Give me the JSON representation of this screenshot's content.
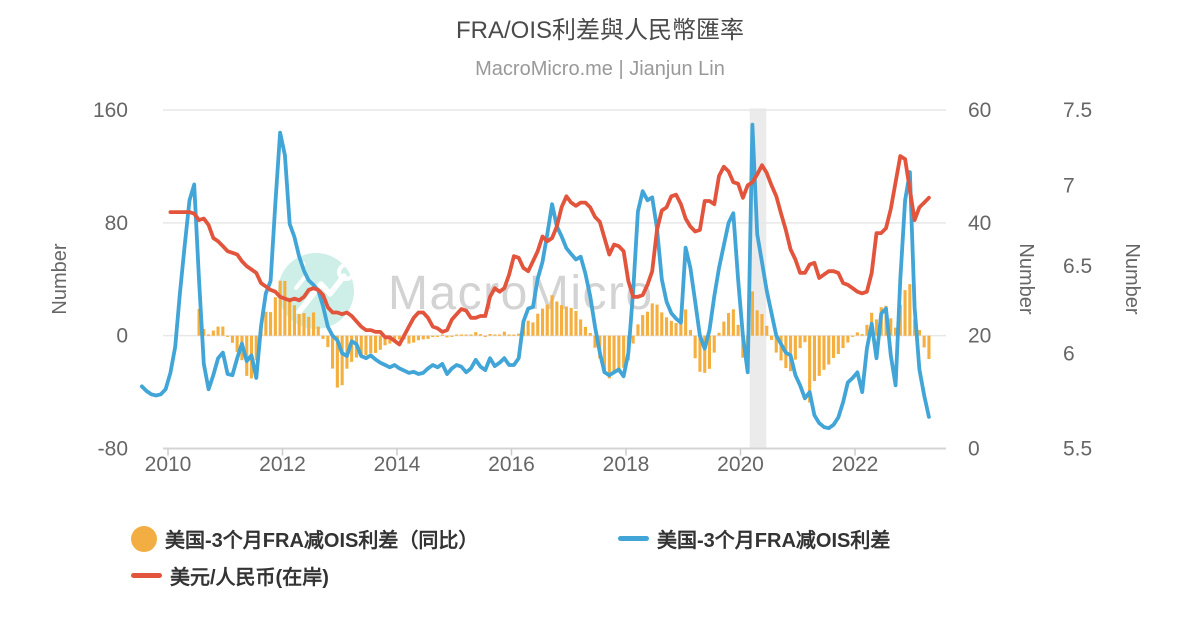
{
  "chart_data": {
    "type": "mixed",
    "title": "FRA/OIS利差與人民幣匯率",
    "subtitle": "MacroMicro.me | Jianjun Lin",
    "watermark": {
      "text": "MacroMicro",
      "circle_color": "#cdefe7",
      "text_color": "#d3d3d3"
    },
    "recession_band": {
      "from": 2020.16,
      "to": 2020.45,
      "color": "#ebebeb"
    },
    "grid": {
      "on": true,
      "color": "#e7e7e7",
      "axis_line_color": "#d4d4d4",
      "tick_color": "#cccccc"
    },
    "x_axis": {
      "ticks": [
        2010,
        2012,
        2014,
        2016,
        2018,
        2020,
        2022
      ],
      "label_color": "#666666"
    },
    "axes": {
      "left": {
        "title": "Number",
        "ticks": [
          "160",
          "80",
          "0",
          "-80"
        ],
        "tick_values": [
          160,
          80,
          0,
          -80
        ],
        "min": -80,
        "max": 160,
        "scale": "linear"
      },
      "right1": {
        "title": "Number",
        "ticks": [
          "60",
          "40",
          "20",
          "0"
        ],
        "tick_values": [
          60,
          40,
          20,
          0
        ],
        "min": 0,
        "max": 60,
        "scale": "linear"
      },
      "right2": {
        "title": "Number",
        "ticks": [
          "7.5",
          "7",
          "6.5",
          "6",
          "5.5"
        ],
        "tick_values": [
          7.5,
          7,
          6.5,
          6,
          5.5
        ],
        "min": 5.5,
        "max": 7.5,
        "scale": "log"
      }
    },
    "series": [
      {
        "name": "美国-3个月FRA减OIS利差（同比）",
        "type": "bar",
        "axis": "left",
        "color": "#F5AF3E",
        "start_year": 2010,
        "start_month": 7,
        "values": [
          19,
          4.8,
          0.9,
          3.6,
          6.4,
          6.5,
          -0.2,
          -5,
          -11.5,
          -17.4,
          -28.5,
          -30.3,
          -17.5,
          6.6,
          17,
          16.7,
          27.3,
          39,
          38.8,
          26.8,
          21.5,
          15.4,
          16,
          13.3,
          16.5,
          6.4,
          -2.3,
          -8.1,
          -23.3,
          -36.8,
          -35.1,
          -23.4,
          -18.5,
          -15.5,
          -15.1,
          -13.8,
          -12.5,
          -12.2,
          -10,
          -6.8,
          -5.6,
          -4.4,
          -2.7,
          -2.6,
          -5.6,
          -4.9,
          -3.2,
          -2.6,
          -2.3,
          -1,
          -0.8,
          0.2,
          -1.2,
          -0.6,
          0.6,
          0.7,
          0.1,
          0.6,
          2.5,
          1.1,
          -0.3,
          1.2,
          0.2,
          0.2,
          2.8,
          0.6,
          0,
          1.5,
          9,
          10.6,
          9.4,
          15.6,
          19.2,
          22,
          28.7,
          24.2,
          21.6,
          20.7,
          19.7,
          17.5,
          11.5,
          6.2,
          1.9,
          -8.5,
          -16.1,
          -24.5,
          -30.3,
          -25.9,
          -23.6,
          -22.7,
          -17.5,
          -5.5,
          8,
          14.6,
          17,
          22.9,
          22,
          16.5,
          13,
          10.5,
          9,
          9.5,
          18.6,
          4,
          -16,
          -25.6,
          -26.3,
          -23.5,
          -12,
          2,
          10,
          16,
          18.7,
          7.7,
          -15.6,
          -18.5,
          31.4,
          18,
          15.3,
          7,
          -3,
          -12,
          -17.5,
          -23,
          -25.2,
          -17,
          -8.8,
          -4.6,
          -47.4,
          -32.1,
          -28.5,
          -24.2,
          -20.4,
          -15.8,
          -13,
          -8.8,
          -4.8,
          -0.5,
          2.3,
          1.1,
          7.7,
          16.2,
          11.5,
          20.1,
          21.2,
          12.3,
          5.7,
          21.8,
          32.3,
          36.5,
          11.5,
          4,
          -8.3,
          -16.5
        ]
      },
      {
        "name": "美国-3个月FRA减OIS利差",
        "type": "line",
        "axis": "right1",
        "color": "#41A5D8",
        "start_year": 2009,
        "start_month": 7,
        "values": [
          11,
          10.2,
          9.6,
          9.4,
          9.6,
          10.5,
          13.4,
          18,
          27.5,
          36,
          44,
          46.8,
          30,
          15,
          10.5,
          13,
          16,
          17,
          13.2,
          13,
          16,
          18.6,
          15.5,
          16.5,
          12.5,
          21.6,
          27.5,
          29.7,
          43.3,
          56,
          52,
          39.8,
          37.5,
          34,
          31.5,
          29.8,
          29,
          28,
          25.2,
          21.6,
          20,
          19.2,
          16.9,
          16.4,
          19,
          18.5,
          16.4,
          16,
          16.5,
          15.8,
          15.2,
          14.8,
          14.4,
          14.8,
          14.2,
          13.8,
          13.4,
          13.6,
          13.2,
          13.4,
          14.2,
          14.8,
          14.4,
          15,
          13.2,
          14.2,
          14.8,
          14.5,
          13.5,
          14.2,
          15.7,
          14.5,
          13.9,
          16,
          14.6,
          15.2,
          16,
          14.8,
          14.8,
          16,
          22.5,
          24.8,
          25.1,
          30.1,
          33.1,
          38,
          43.3,
          39.4,
          37.6,
          35.5,
          34.5,
          33.5,
          34,
          31,
          27,
          21.6,
          17,
          13.5,
          13,
          13.5,
          14,
          12.8,
          17,
          28,
          42,
          45.6,
          44,
          44.5,
          39,
          30,
          26,
          24,
          23,
          22.3,
          35.6,
          32,
          26,
          20,
          17.7,
          21,
          27,
          32,
          36,
          40,
          41.7,
          30,
          20,
          13.5,
          57.4,
          38,
          33,
          28,
          24,
          20,
          18.5,
          17,
          16.5,
          13,
          11.2,
          8.9,
          10,
          5.9,
          4.5,
          3.8,
          3.6,
          4.2,
          5.5,
          8.2,
          11.7,
          12.5,
          13.5,
          10,
          17.7,
          22.1,
          16,
          23.9,
          24.8,
          16.5,
          11.2,
          30,
          44,
          49,
          25,
          14,
          9.4,
          5.6
        ]
      },
      {
        "name": "美元/人民币(在岸)",
        "type": "line",
        "axis": "right2",
        "color": "#E2543C",
        "start_year": 2010,
        "start_month": 1,
        "values": [
          6.83,
          6.83,
          6.83,
          6.83,
          6.83,
          6.82,
          6.78,
          6.79,
          6.75,
          6.67,
          6.65,
          6.62,
          6.59,
          6.58,
          6.57,
          6.53,
          6.5,
          6.48,
          6.46,
          6.4,
          6.38,
          6.36,
          6.35,
          6.32,
          6.31,
          6.3,
          6.31,
          6.3,
          6.32,
          6.36,
          6.37,
          6.36,
          6.33,
          6.26,
          6.23,
          6.23,
          6.22,
          6.23,
          6.21,
          6.18,
          6.15,
          6.13,
          6.13,
          6.12,
          6.12,
          6.09,
          6.09,
          6.07,
          6.05,
          6.1,
          6.15,
          6.2,
          6.23,
          6.23,
          6.2,
          6.15,
          6.14,
          6.12,
          6.13,
          6.19,
          6.22,
          6.25,
          6.24,
          6.2,
          6.2,
          6.21,
          6.21,
          6.32,
          6.37,
          6.35,
          6.37,
          6.45,
          6.56,
          6.55,
          6.49,
          6.47,
          6.53,
          6.59,
          6.68,
          6.65,
          6.67,
          6.74,
          6.86,
          6.93,
          6.89,
          6.87,
          6.89,
          6.89,
          6.86,
          6.8,
          6.77,
          6.67,
          6.57,
          6.63,
          6.62,
          6.59,
          6.41,
          6.32,
          6.32,
          6.33,
          6.39,
          6.47,
          6.72,
          6.84,
          6.86,
          6.93,
          6.94,
          6.88,
          6.79,
          6.74,
          6.71,
          6.72,
          6.9,
          6.9,
          6.88,
          7.06,
          7.12,
          7.09,
          7.02,
          7.01,
          6.92,
          7.0,
          7.02,
          7.07,
          7.13,
          7.08,
          7.0,
          6.93,
          6.82,
          6.72,
          6.6,
          6.54,
          6.46,
          6.46,
          6.51,
          6.52,
          6.43,
          6.45,
          6.47,
          6.47,
          6.46,
          6.4,
          6.39,
          6.37,
          6.35,
          6.34,
          6.35,
          6.46,
          6.7,
          6.7,
          6.73,
          6.85,
          7.02,
          7.19,
          7.17,
          6.97,
          6.78,
          6.86,
          6.89,
          6.92
        ]
      }
    ]
  },
  "legend": [
    {
      "label": "美国-3个月FRA减OIS利差（同比）",
      "marker": "circle",
      "color": "#F2AE43"
    },
    {
      "label": "美国-3个月FRA减OIS利差",
      "marker": "line",
      "color": "#41A5D8"
    },
    {
      "label": "美元/人民币(在岸)",
      "marker": "line",
      "color": "#E2543C"
    }
  ]
}
